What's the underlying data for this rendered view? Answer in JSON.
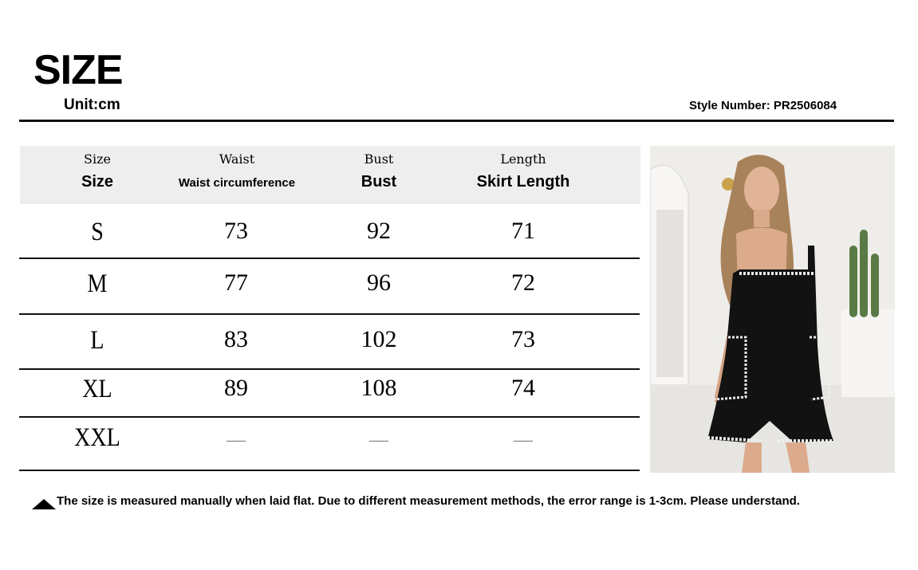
{
  "title": "SIZE",
  "unit": "Unit:cm",
  "style_number": "Style Number: PR2506084",
  "columns": [
    {
      "label": "Size",
      "sublabel": "Size"
    },
    {
      "label": "Waist",
      "sublabel": "Waist circumference"
    },
    {
      "label": "Bust",
      "sublabel": "Bust"
    },
    {
      "label": "Length",
      "sublabel": "Skirt Length"
    }
  ],
  "rows": [
    [
      "S",
      "73",
      "92",
      "71"
    ],
    [
      "M",
      "77",
      "96",
      "72"
    ],
    [
      "L",
      "83",
      "102",
      "73"
    ],
    [
      "XL",
      "89",
      "108",
      "74"
    ],
    [
      "XXL",
      "__",
      "__",
      "__"
    ]
  ],
  "note": "The size is measured manually when laid flat. Due to different measurement methods, the error range is 1-3cm. Please understand.",
  "note_icon": "triangle-up-icon",
  "colors": {
    "header_bg": "#eeeeee",
    "garment": "#111111"
  }
}
